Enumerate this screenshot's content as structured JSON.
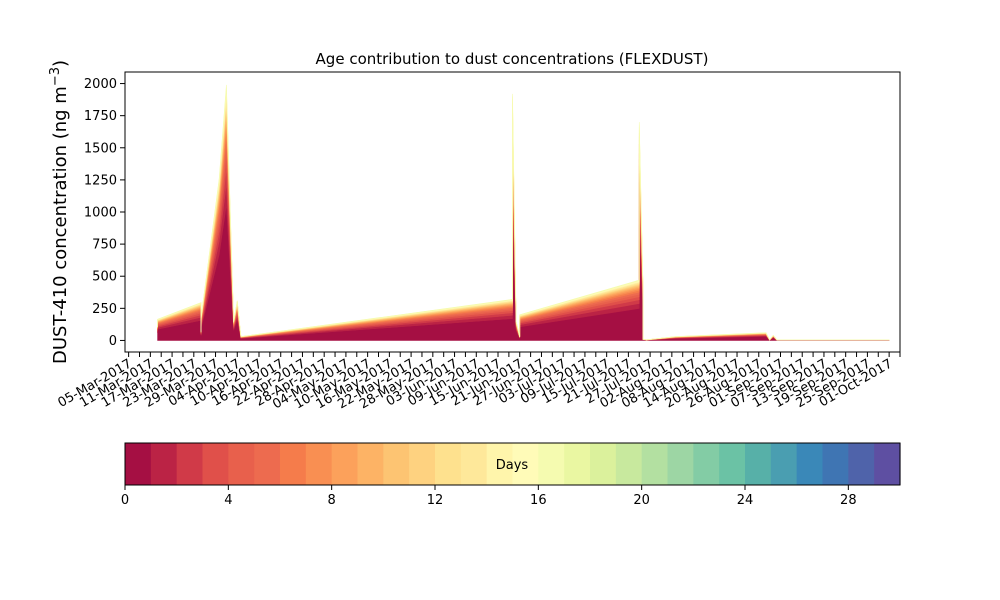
{
  "chart_data": {
    "type": "area",
    "title": "Age contribution to dust concentrations (FLEXDUST)",
    "ylabel_main": "DUST-410 concentration (ng m",
    "ylabel_unit_exp": "−3",
    "ylabel_close": ")",
    "ylim": [
      -90,
      2090
    ],
    "yticks": [
      0,
      250,
      500,
      750,
      1000,
      1250,
      1500,
      1750,
      2000
    ],
    "xlim": [
      "2017-03-04",
      "2017-10-04"
    ],
    "x_tick_every_days": 3,
    "x_tick_label_every_days": 6,
    "x_tick_label_start": "2017-03-05",
    "x_tick_label_format": "DD-Mon-YYYY",
    "grid": false,
    "stacked": true,
    "series_note_colors": "one stacked band per age day (0-30), coloured by Spectral colormap",
    "total_curve": {
      "x": [
        "2017-03-13",
        "2017-03-13",
        "2017-03-25",
        "2017-03-25",
        "2017-03-25",
        "2017-03-30",
        "2017-04-01",
        "2017-04-03",
        "2017-04-04",
        "2017-04-05",
        "2017-06-19",
        "2017-06-19",
        "2017-06-20",
        "2017-06-21",
        "2017-06-21",
        "2017-07-24",
        "2017-07-24",
        "2017-07-25",
        "2017-07-25",
        "2017-07-26",
        "2017-08-03",
        "2017-08-28",
        "2017-08-29",
        "2017-08-30",
        "2017-08-31",
        "2017-10-01"
      ],
      "y": [
        110,
        165,
        295,
        70,
        180,
        1260,
        1990,
        150,
        310,
        30,
        320,
        1920,
        150,
        30,
        200,
        470,
        1700,
        470,
        10,
        5,
        30,
        60,
        5,
        40,
        5,
        5
      ]
    },
    "band_fractions": [
      0.52,
      0.08,
      0.06,
      0.05,
      0.04,
      0.035,
      0.03,
      0.025,
      0.022,
      0.02,
      0.018,
      0.016,
      0.015,
      0.014,
      0.013,
      0.012,
      0.01
    ],
    "colorbar": {
      "label": "Days",
      "vmin": 0,
      "vmax": 30,
      "ticks": [
        0,
        4,
        8,
        12,
        16,
        20,
        24,
        28
      ],
      "n_bins": 30,
      "colors": [
        "#a50f43",
        "#bb2345",
        "#d03a48",
        "#e0504a",
        "#e8604c",
        "#ed6b4f",
        "#f57c4b",
        "#f98f52",
        "#fca15b",
        "#fdb365",
        "#fdc472",
        "#fed280",
        "#fee18e",
        "#fee89a",
        "#fff5ab",
        "#fffbb8",
        "#f5fbb0",
        "#eaf7a2",
        "#dbf19c",
        "#c8e99e",
        "#b3e0a1",
        "#9dd6a4",
        "#83cca5",
        "#6bc2a5",
        "#57b0a8",
        "#4a9eb1",
        "#3a88b8",
        "#3f75b3",
        "#4f63aa",
        "#5e4fa2"
      ]
    }
  }
}
